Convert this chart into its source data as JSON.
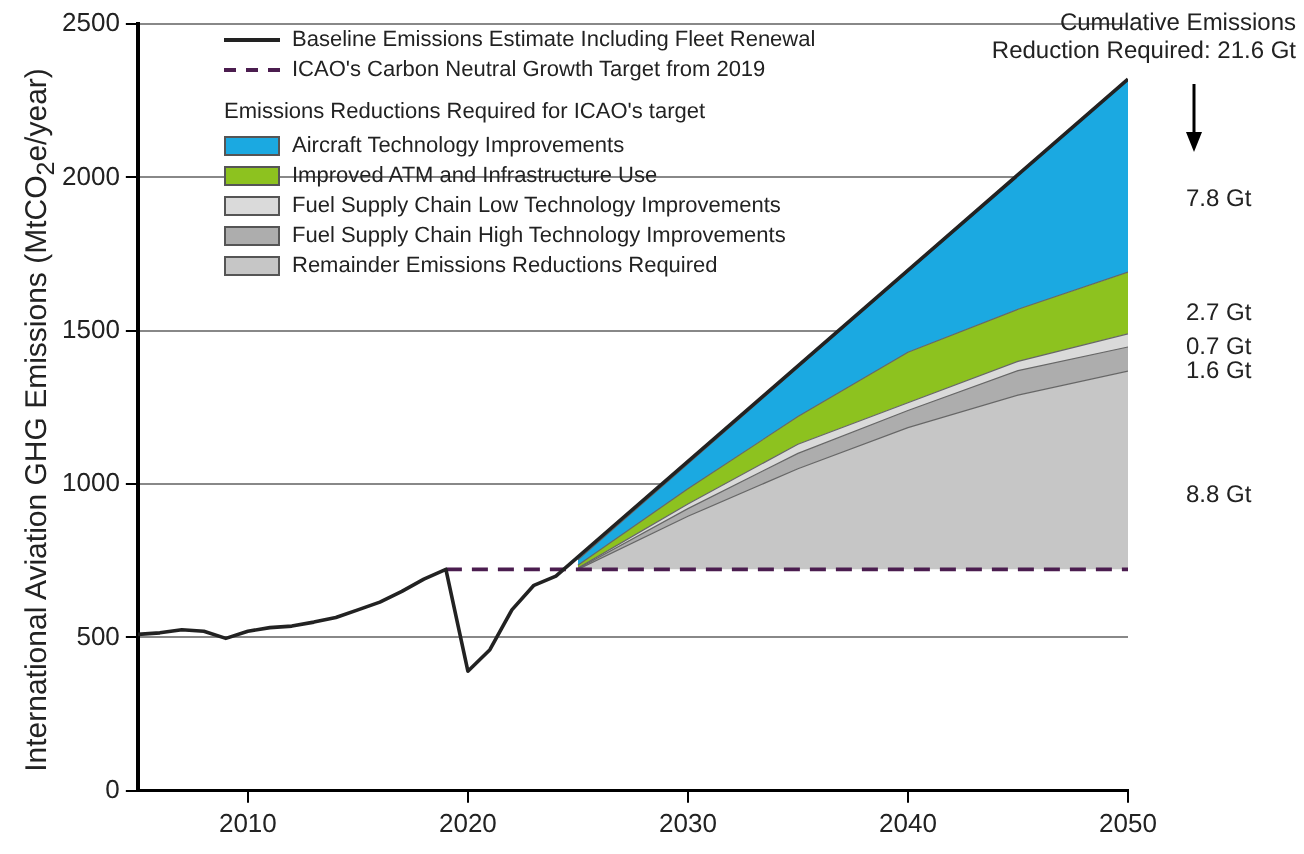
{
  "chart_data": {
    "type": "area",
    "ylabel": "International Aviation GHG Emissions (MtCO$_{2}$e/year)",
    "legend_title": "Emissions Reductions Required for ICAO's target",
    "xlim": [
      2005,
      2050
    ],
    "xticks": [
      2010,
      2020,
      2030,
      2040,
      2050
    ],
    "ylim": [
      0,
      2500
    ],
    "yticks": [
      0,
      500,
      1000,
      1500,
      2000,
      2500
    ],
    "grid": "y",
    "legend": "top left",
    "marker": "none",
    "series": [
      {
        "name": "Baseline Emissions Estimate Including Fleet Renewal",
        "type": "line",
        "color": "#222222",
        "x": [
          2005,
          2006,
          2007,
          2008,
          2009,
          2010,
          2011,
          2012,
          2013,
          2014,
          2015,
          2016,
          2017,
          2018,
          2019,
          2020,
          2021,
          2022,
          2023,
          2024,
          2050
        ],
        "values": [
          510,
          515,
          525,
          520,
          497,
          520,
          532,
          537,
          550,
          565,
          590,
          615,
          650,
          690,
          722,
          390,
          460,
          590,
          670,
          700,
          2320
        ]
      },
      {
        "name": "ICAO's Carbon Neutral Growth Target from 2019",
        "type": "line",
        "line_style": "dashed",
        "color": "#4b1d4f",
        "x": [
          2019,
          2050
        ],
        "values": [
          722,
          722
        ]
      },
      {
        "name": "Remainder Emissions Reductions Required",
        "color": "#c6c6c6",
        "x": [
          2025,
          2030,
          2035,
          2040,
          2045,
          2050
        ],
        "values": [
          722,
          895,
          1050,
          1184,
          1290,
          1368
        ]
      },
      {
        "name": "Fuel Supply Chain High Technology Improvements",
        "color": "#adadad",
        "x": [
          2025,
          2030,
          2035,
          2040,
          2045,
          2050
        ],
        "values": [
          724,
          920,
          1100,
          1240,
          1370,
          1447
        ]
      },
      {
        "name": "Fuel Supply Chain Low Technology Improvements",
        "color": "#dadada",
        "x": [
          2025,
          2030,
          2035,
          2040,
          2045,
          2050
        ],
        "values": [
          726,
          935,
          1130,
          1265,
          1400,
          1490
        ]
      },
      {
        "name": "Improved ATM and Infrastructure Use",
        "color": "#8dc21f",
        "x": [
          2025,
          2030,
          2035,
          2040,
          2045,
          2050
        ],
        "values": [
          735,
          985,
          1220,
          1430,
          1570,
          1691
        ]
      },
      {
        "name": "Aircraft Technology Improvements",
        "color": "#1ba9e1",
        "x": [
          2025,
          2030,
          2035,
          2040,
          2045,
          2050
        ],
        "values": [
          753,
          1066,
          1380,
          1693,
          2007,
          2320
        ]
      }
    ],
    "annotations": [
      "Cumulative Emissions Reduction Required: 21.6 Gt",
      "7.8 Gt",
      "2.7 Gt",
      "0.7 Gt",
      "1.6 Gt",
      "8.8 Gt"
    ]
  }
}
